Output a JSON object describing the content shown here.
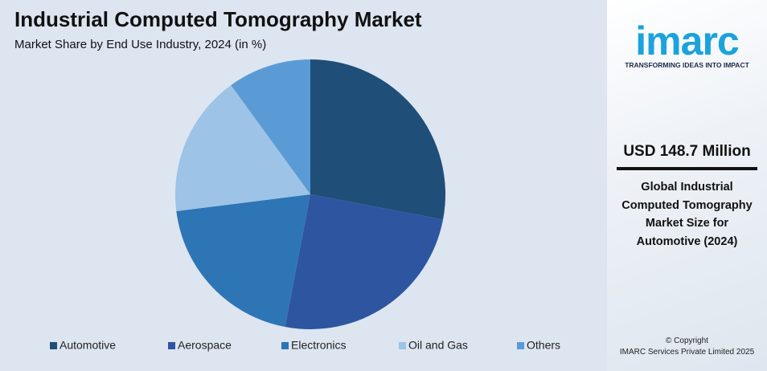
{
  "chart_data": {
    "type": "pie",
    "title": "Industrial Computed Tomography Market",
    "subtitle": "Market Share by End Use Industry, 2024 (in %)",
    "categories": [
      "Automotive",
      "Aerospace",
      "Electronics",
      "Oil and Gas",
      "Others"
    ],
    "values": [
      28,
      25,
      20,
      17,
      10
    ],
    "colors": [
      "#1f4e79",
      "#2e55a0",
      "#2e75b6",
      "#9dc3e6",
      "#5b9bd5"
    ],
    "legend": "bottom"
  },
  "sidebar": {
    "logo": "imarc",
    "tagline": "TRANSFORMING IDEAS INTO IMPACT",
    "headline": "USD 148.7 Million",
    "description": "Global Industrial Computed Tomography Market Size for Automotive (2024)",
    "copyright": "© Copyright",
    "company": "IMARC Services Private Limited 2025"
  }
}
